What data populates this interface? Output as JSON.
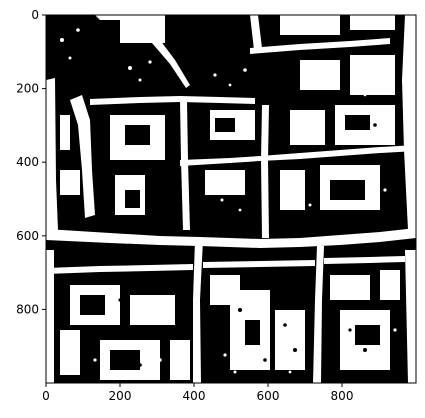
{
  "figure": {
    "type": "image-plot",
    "colormap": "binary (black/white)",
    "axes": {
      "x": {
        "ticks": [
          0,
          200,
          400,
          600,
          800
        ],
        "range": [
          0,
          1000
        ]
      },
      "y": {
        "ticks": [
          0,
          200,
          400,
          600,
          800
        ],
        "range": [
          0,
          1000
        ],
        "inverted": true
      }
    }
  },
  "image": {
    "name": "binary-aerial-city-mask",
    "description_colors": {
      "foreground": "#ffffff",
      "background": "#000000"
    }
  }
}
